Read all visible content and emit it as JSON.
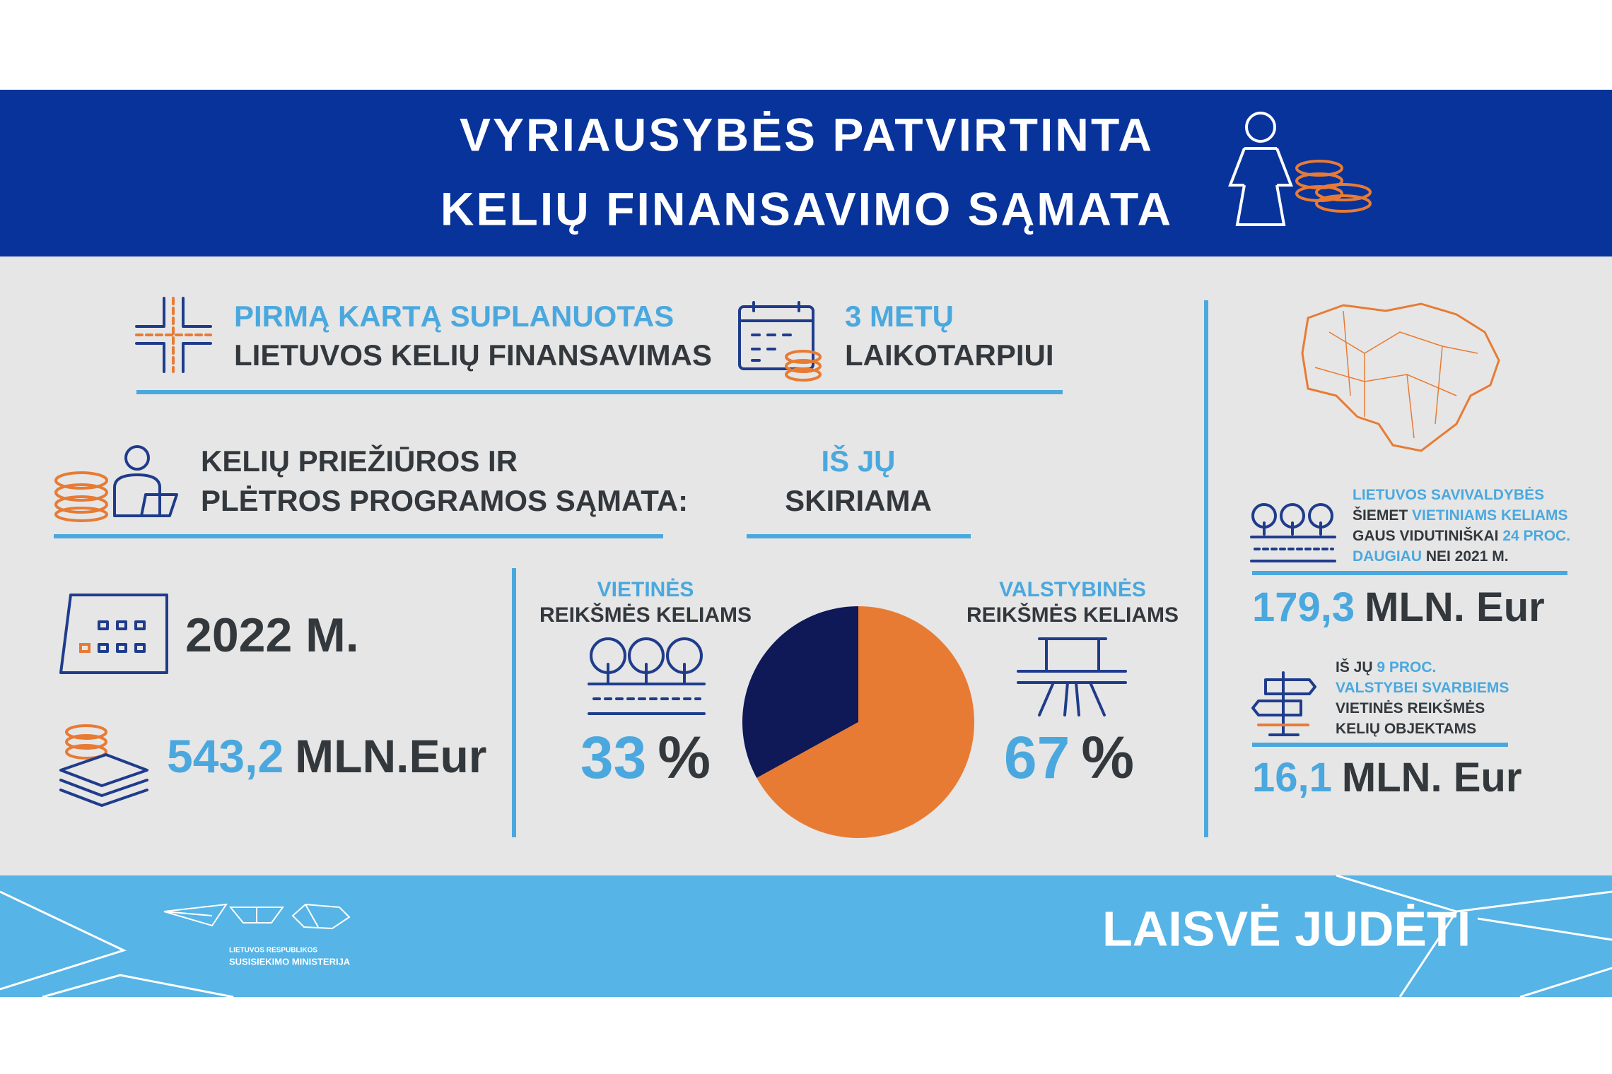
{
  "header": {
    "title_lines": [
      "VYRIAUSYBĖS PATVIRTINTA",
      "KELIŲ FINANSAVIMO SĄMATA"
    ]
  },
  "intro": {
    "first": [
      "PIRMĄ KARTĄ SUPLANUOTAS",
      "LIETUVOS KELIŲ FINANSAVIMAS"
    ],
    "period": [
      "3 METŲ",
      "LAIKOTARPIUI"
    ]
  },
  "budget": {
    "heading": [
      "KELIŲ PRIEŽIŪROS IR",
      "PLĖTROS PROGRAMOS SĄMATA:"
    ],
    "year": "2022 M.",
    "amount": "543,2",
    "amount_unit": "MLN.Eur"
  },
  "allocation": {
    "heading": [
      "IŠ JŲ",
      "SKIRIAMA"
    ]
  },
  "chart_data": {
    "type": "pie",
    "categories": [
      "VIETINĖS",
      "VALSTYBINĖS"
    ],
    "category_notes": [
      "REIKŠMĖS KELIAMS",
      "REIKŠMĖS KELIAMS"
    ],
    "values": [
      33,
      67
    ],
    "unit": "%",
    "colors": [
      "#0f1957",
      "#e87b34"
    ]
  },
  "municipalities": {
    "note": [
      [
        {
          "text": "LIETUVOS SAVIVALDYBĖS",
          "color": "#4aa8de"
        }
      ],
      [
        {
          "text": "ŠIEMET ",
          "color": "#33383d"
        },
        {
          "text": "VIETINIAMS KELIAMS",
          "color": "#4aa8de"
        }
      ],
      [
        {
          "text": "GAUS VIDUTINIŠKAI ",
          "color": "#33383d"
        },
        {
          "text": "24 PROC.",
          "color": "#4aa8de"
        }
      ],
      [
        {
          "text": "DAUGIAU ",
          "color": "#4aa8de"
        },
        {
          "text": "NEI 2021 M.",
          "color": "#33383d"
        }
      ]
    ],
    "amount": "179,3",
    "amount_unit": "MLN. Eur"
  },
  "state_important": {
    "note": [
      [
        {
          "text": "IŠ JŲ ",
          "color": "#33383d"
        },
        {
          "text": "9 PROC.",
          "color": "#4aa8de"
        }
      ],
      [
        {
          "text": "VALSTYBEI SVARBIEMS",
          "color": "#4aa8de"
        }
      ],
      [
        {
          "text": "VIETINĖS REIKŠMĖS",
          "color": "#33383d"
        }
      ],
      [
        {
          "text": "KELIŲ OBJEKTAMS",
          "color": "#33383d"
        }
      ]
    ],
    "amount": "16,1",
    "amount_unit": "MLN. Eur"
  },
  "footer": {
    "ministry": [
      "LIETUVOS RESPUBLIKOS",
      "SUSISIEKIMO MINISTERIJA"
    ],
    "slogan": "LAISVĖ JUDĖTI"
  }
}
